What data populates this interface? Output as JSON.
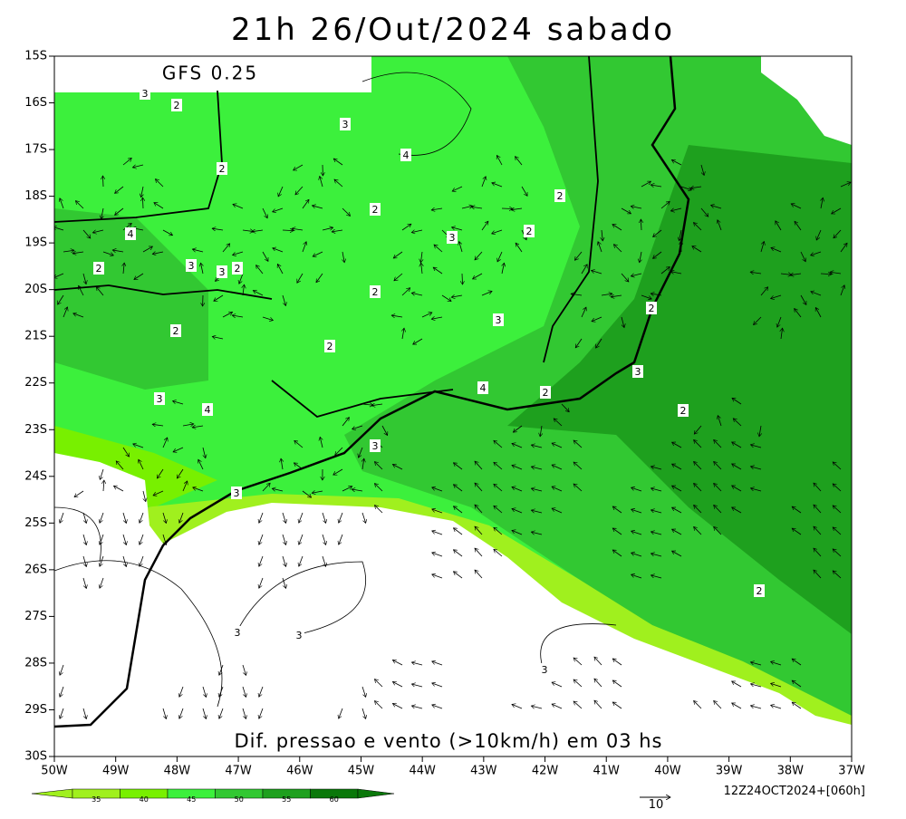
{
  "title": "21h 26/Out/2024 sabado",
  "model_label": "GFS 0.25",
  "caption": "Dif. pressao e vento (>10km/h) em 03 hs",
  "run_label": "12Z24OCT2024+[060h]",
  "vector_scale_label": "10",
  "lat_labels": [
    "15S",
    "16S",
    "17S",
    "18S",
    "19S",
    "20S",
    "21S",
    "22S",
    "23S",
    "24S",
    "25S",
    "26S",
    "27S",
    "28S",
    "29S",
    "30S"
  ],
  "lon_labels": [
    "50W",
    "49W",
    "48W",
    "47W",
    "46W",
    "45W",
    "44W",
    "43W",
    "42W",
    "41W",
    "40W",
    "39W",
    "38W",
    "37W"
  ],
  "contour_labels": [
    3,
    2,
    3,
    4,
    2,
    2,
    2,
    4,
    2,
    3,
    2,
    3,
    3,
    2,
    2,
    2,
    3,
    2,
    2,
    3,
    4,
    2,
    3,
    4,
    2,
    3,
    3,
    2,
    3,
    3,
    3
  ],
  "colorbar": {
    "ticks": [
      35,
      40,
      45,
      50,
      55,
      60
    ],
    "colors": [
      "#a0f01e",
      "#78f000",
      "#3cf03c",
      "#32c832",
      "#1ea01e",
      "#0a780a"
    ]
  }
}
